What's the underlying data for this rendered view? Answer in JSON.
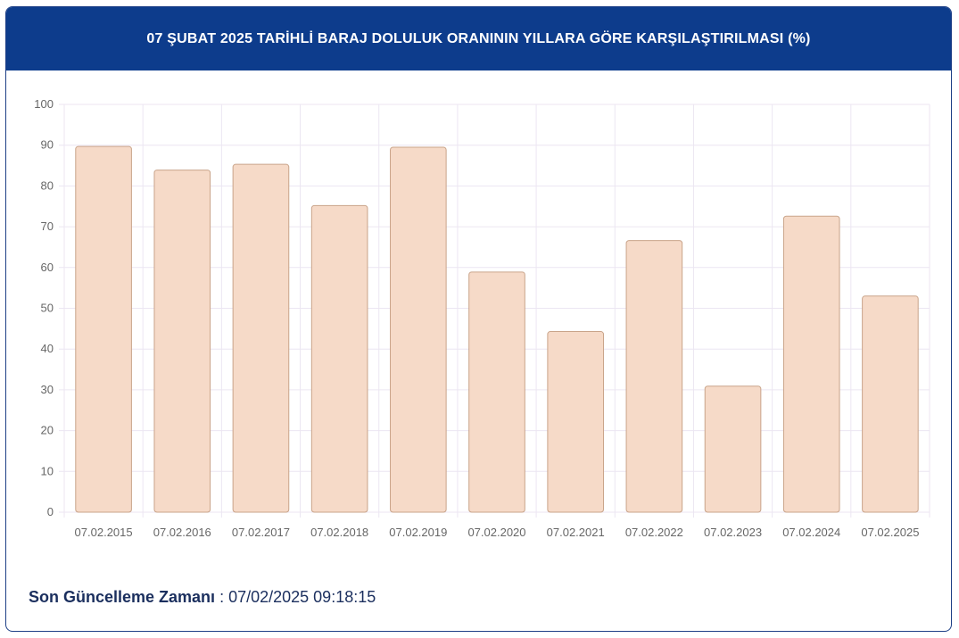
{
  "header": {
    "title": "07 ŞUBAT 2025 TARİHLİ BARAJ DOLULUK ORANININ YILLARA GÖRE KARŞILAŞTIRILMASI (%)"
  },
  "footer": {
    "label": "Son Güncelleme Zamanı",
    "separator": " : ",
    "value": "07/02/2025 09:18:15"
  },
  "colors": {
    "header_bg": "#0d3c8c",
    "bar_fill": "#f6dac8",
    "bar_stroke": "#c9a48a",
    "grid": "#ece6f2"
  },
  "chart_data": {
    "type": "bar",
    "title": "07 ŞUBAT 2025 TARİHLİ BARAJ DOLULUK ORANININ YILLARA GÖRE KARŞILAŞTIRILMASI (%)",
    "xlabel": "",
    "ylabel": "",
    "categories": [
      "07.02.2015",
      "07.02.2016",
      "07.02.2017",
      "07.02.2018",
      "07.02.2019",
      "07.02.2020",
      "07.02.2021",
      "07.02.2022",
      "07.02.2023",
      "07.02.2024",
      "07.02.2025"
    ],
    "values": [
      89.7,
      83.9,
      85.3,
      75.2,
      89.5,
      58.9,
      44.3,
      66.6,
      30.9,
      72.6,
      53.0
    ],
    "ylim": [
      0,
      100
    ],
    "yticks": [
      0,
      10,
      20,
      30,
      40,
      50,
      60,
      70,
      80,
      90,
      100
    ],
    "grid": true,
    "legend": "none"
  }
}
